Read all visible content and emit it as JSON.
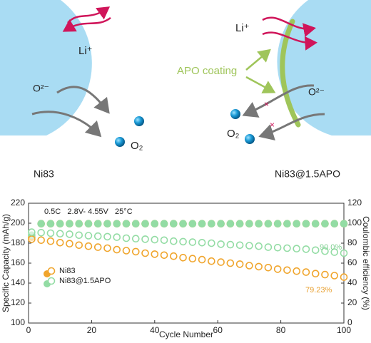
{
  "schematic": {
    "left": {
      "li": "Li⁺",
      "oxygen_ion": "O²⁻",
      "oxygen_gas": "O₂",
      "label": "Ni83"
    },
    "right": {
      "li": "Li⁺",
      "oxygen_ion": "O²⁻",
      "oxygen_gas": "O₂",
      "coating": "APO coating",
      "label": "Ni83@1.5APO"
    }
  },
  "chart_data": {
    "type": "scatter",
    "xlabel": "Cycle Number",
    "ylabel": "Specific Capacity (mAh/g)",
    "y2label": "Coulombic efficiency (%)",
    "xlim": [
      0,
      100
    ],
    "xticks": [
      0,
      20,
      40,
      60,
      80,
      100
    ],
    "ylim": [
      100,
      220
    ],
    "yticks": [
      100,
      120,
      140,
      160,
      180,
      200,
      220
    ],
    "y2lim": [
      0,
      120
    ],
    "y2ticks": [
      0,
      20,
      40,
      60,
      80,
      100,
      120
    ],
    "legend": "lower left",
    "annotations": [
      "0.5C   2.8V- 4.55V   25°C",
      "90.0%",
      "79.23%"
    ],
    "x": [
      1,
      4,
      7,
      10,
      13,
      16,
      19,
      22,
      25,
      28,
      31,
      34,
      37,
      40,
      43,
      46,
      49,
      52,
      55,
      58,
      61,
      64,
      67,
      70,
      73,
      76,
      79,
      82,
      85,
      88,
      91,
      94,
      97,
      100
    ],
    "series": [
      {
        "name": "Ni83",
        "color": "#f0a52c",
        "values": [
          184,
          183,
          182,
          180.5,
          179.5,
          178,
          177,
          176,
          175,
          173.5,
          172.5,
          171.5,
          170,
          169,
          168,
          167,
          165.5,
          164.5,
          163.5,
          162,
          161,
          160,
          159,
          157.5,
          156.5,
          155.5,
          154,
          153,
          152,
          151,
          149.5,
          148.5,
          147.5,
          146
        ]
      },
      {
        "name": "Ni83@1.5APO",
        "color": "#93dca4",
        "values": [
          191,
          190.5,
          190,
          189.5,
          189,
          188,
          187.5,
          187,
          186.5,
          186,
          185,
          184.5,
          184,
          183.5,
          183,
          182,
          181.5,
          181,
          180.5,
          180,
          179,
          178.5,
          178,
          177.5,
          177,
          176,
          175.5,
          175,
          174.5,
          174,
          173,
          172,
          171,
          170
        ]
      },
      {
        "color": "#f0a52c",
        "axis": "y2",
        "values": [
          86,
          99.5,
          99.5,
          99.5,
          99.5,
          99.5,
          99.5,
          99.5,
          99.5,
          99.5,
          99.5,
          99.5,
          99.5,
          99.5,
          99.5,
          99.5,
          99.5,
          99.5,
          99.5,
          99.5,
          99.5,
          99.5,
          99.5,
          99.5,
          99.5,
          99.5,
          99.5,
          99.5,
          99.5,
          99.5,
          99.5,
          99.5,
          99.5,
          99.5
        ]
      },
      {
        "color": "#93dca4",
        "axis": "y2",
        "values": [
          88,
          99.5,
          99.5,
          99.5,
          99.5,
          99.5,
          99.5,
          99.5,
          99.5,
          99.5,
          99.5,
          99.5,
          99.5,
          99.5,
          99.5,
          99.5,
          99.5,
          99.5,
          99.5,
          99.5,
          99.5,
          99.5,
          99.5,
          99.5,
          99.5,
          99.5,
          99.5,
          99.5,
          99.5,
          99.5,
          99.5,
          99.5,
          99.5,
          99.5
        ]
      }
    ]
  }
}
